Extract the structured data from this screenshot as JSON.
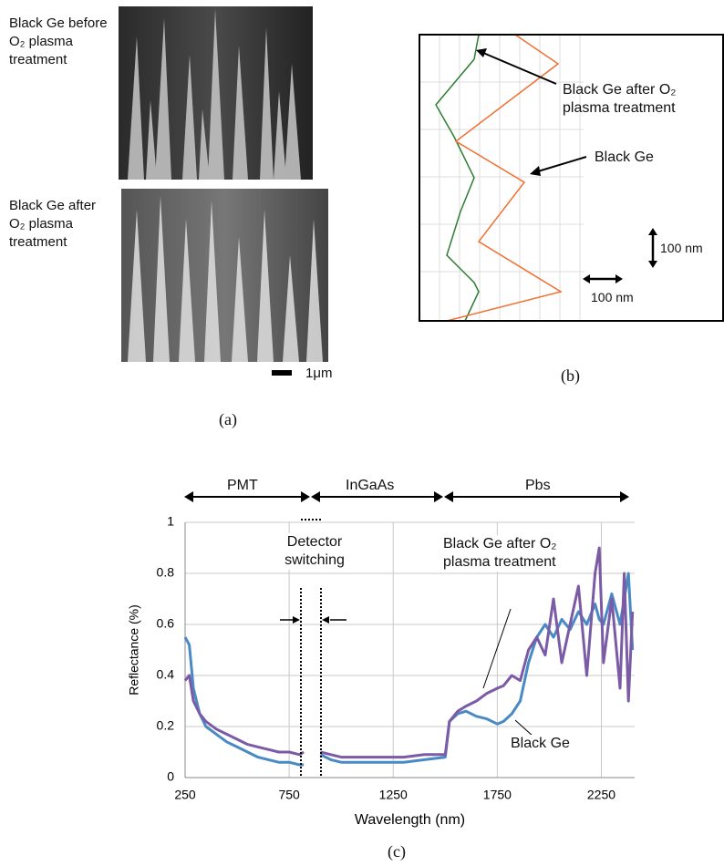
{
  "panel_a": {
    "label_before": "Black Ge before O₂ plasma treatment",
    "label_after": "Black Ge after O₂ plasma treatment",
    "scale_bar": "1μm",
    "caption": "(a)"
  },
  "panel_b": {
    "label_after": "Black Ge after O₂ plasma treatment",
    "label_black_ge": "Black Ge",
    "vertical_scale": "100 nm",
    "horizontal_scale": "100 nm",
    "caption": "(b)"
  },
  "chart_data": {
    "type": "line",
    "caption": "(c)",
    "x_label": "Wavelength (nm)",
    "y_label": "Reflectance (%)",
    "regions": [
      "PMT",
      "InGaAs",
      "Pbs"
    ],
    "annotation": "Detector switching",
    "x": [
      250,
      270,
      290,
      320,
      350,
      400,
      450,
      500,
      550,
      600,
      650,
      700,
      750,
      800,
      820,
      860,
      900,
      950,
      1000,
      1100,
      1200,
      1300,
      1400,
      1500,
      1520,
      1560,
      1600,
      1650,
      1700,
      1750,
      1780,
      1820,
      1860,
      1900,
      1940,
      1980,
      2020,
      2060,
      2100,
      2140,
      2180,
      2220,
      2240,
      2260,
      2300,
      2340,
      2360,
      2380,
      2400
    ],
    "series": [
      {
        "name": "Black Ge",
        "color": "#4a8ac4",
        "values": [
          0.55,
          0.52,
          0.35,
          0.25,
          0.2,
          0.17,
          0.14,
          0.12,
          0.1,
          0.08,
          0.07,
          0.06,
          0.06,
          0.05,
          0.05,
          null,
          0.09,
          0.07,
          0.06,
          0.06,
          0.06,
          0.06,
          0.07,
          0.08,
          0.22,
          0.25,
          0.26,
          0.24,
          0.23,
          0.21,
          0.22,
          0.25,
          0.3,
          0.45,
          0.55,
          0.6,
          0.55,
          0.62,
          0.58,
          0.65,
          0.6,
          0.68,
          0.62,
          0.6,
          0.72,
          0.6,
          0.7,
          0.8,
          0.5
        ]
      },
      {
        "name": "Black Ge after O₂ plasma treatment",
        "color": "#7b5aa6",
        "values": [
          0.38,
          0.4,
          0.3,
          0.25,
          0.22,
          0.19,
          0.17,
          0.15,
          0.13,
          0.12,
          0.11,
          0.1,
          0.1,
          0.09,
          0.1,
          null,
          0.1,
          0.09,
          0.08,
          0.08,
          0.08,
          0.08,
          0.09,
          0.09,
          0.22,
          0.26,
          0.28,
          0.3,
          0.33,
          0.35,
          0.36,
          0.4,
          0.38,
          0.5,
          0.55,
          0.48,
          0.7,
          0.45,
          0.6,
          0.75,
          0.4,
          0.8,
          0.9,
          0.45,
          0.7,
          0.35,
          0.8,
          0.3,
          0.65
        ]
      }
    ],
    "xlim": [
      250,
      2410
    ],
    "ylim": [
      0,
      1
    ],
    "xticks": [
      250,
      750,
      1250,
      1750,
      2250
    ],
    "yticks": [
      0,
      0.2,
      0.4,
      0.6,
      0.8,
      1
    ],
    "grid": true
  }
}
